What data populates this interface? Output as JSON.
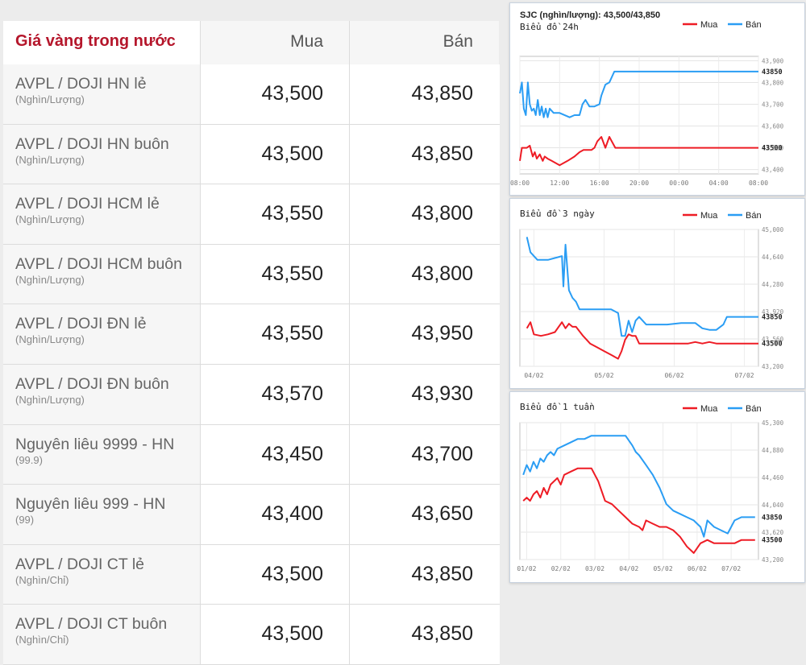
{
  "table": {
    "title": "Giá vàng trong nước",
    "col_buy": "Mua",
    "col_sell": "Bán",
    "rows": [
      {
        "name": "AVPL / DOJI HN lẻ",
        "unit": "(Nghìn/Lượng)",
        "buy": "43,500",
        "sell": "43,850"
      },
      {
        "name": "AVPL / DOJI HN buôn",
        "unit": "(Nghìn/Lượng)",
        "buy": "43,500",
        "sell": "43,850"
      },
      {
        "name": "AVPL / DOJI HCM lẻ",
        "unit": "(Nghìn/Lượng)",
        "buy": "43,550",
        "sell": "43,800"
      },
      {
        "name": "AVPL / DOJI HCM buôn",
        "unit": "(Nghìn/Lượng)",
        "buy": "43,550",
        "sell": "43,800"
      },
      {
        "name": "AVPL / DOJI ĐN lẻ",
        "unit": "(Nghìn/Lượng)",
        "buy": "43,550",
        "sell": "43,950"
      },
      {
        "name": "AVPL / DOJI ĐN buôn",
        "unit": "(Nghìn/Lượng)",
        "buy": "43,570",
        "sell": "43,930"
      },
      {
        "name": "Nguyên liêu 9999 - HN",
        "unit": "(99.9)",
        "buy": "43,450",
        "sell": "43,700"
      },
      {
        "name": "Nguyên liêu 999 - HN",
        "unit": "(99)",
        "buy": "43,400",
        "sell": "43,650"
      },
      {
        "name": "AVPL / DOJI CT lẻ",
        "unit": "(Nghìn/Chỉ)",
        "buy": "43,500",
        "sell": "43,850"
      },
      {
        "name": "AVPL / DOJI CT buôn",
        "unit": "(Nghìn/Chỉ)",
        "buy": "43,500",
        "sell": "43,850"
      }
    ]
  },
  "chart_data": [
    {
      "type": "line",
      "header": "SJC (nghìn/lượng): 43,500/43,850",
      "title": "Biểu đồ 24h",
      "legend": [
        "Mua",
        "Bán"
      ],
      "legend_position": "top-right",
      "colors": {
        "Mua": "#ee1c25",
        "Bán": "#2a9df4"
      },
      "x_ticks": [
        "08:00",
        "12:00",
        "16:00",
        "20:00",
        "00:00",
        "04:00",
        "08:00"
      ],
      "y_ticks": [
        43900,
        43800,
        43700,
        43600,
        43500,
        43400
      ],
      "ylim": [
        43380,
        43920
      ],
      "y_tick_labels": [
        "43,900",
        "43,800",
        "43,700",
        "43,600",
        "43,500",
        "43,400"
      ],
      "last_labels": {
        "Mua": "43500",
        "Bán": "43850"
      },
      "grid": true,
      "series": [
        {
          "name": "Mua",
          "x": [
            8.0,
            8.2,
            8.4,
            8.7,
            9.0,
            9.3,
            9.5,
            9.7,
            10.0,
            10.3,
            10.5,
            10.8,
            11.2,
            11.6,
            12.0,
            12.8,
            13.5,
            14.0,
            14.4,
            14.8,
            15.2,
            15.5,
            15.8,
            16.2,
            16.6,
            17.0,
            17.6,
            18.0,
            20,
            22,
            24,
            26,
            28,
            30,
            32
          ],
          "y": [
            43440,
            43500,
            43500,
            43500,
            43510,
            43460,
            43480,
            43450,
            43470,
            43440,
            43460,
            43450,
            43440,
            43430,
            43420,
            43440,
            43460,
            43480,
            43490,
            43490,
            43490,
            43500,
            43530,
            43550,
            43500,
            43550,
            43500,
            43500,
            43500,
            43500,
            43500,
            43500,
            43500,
            43500,
            43500
          ]
        },
        {
          "name": "Bán",
          "x": [
            8.0,
            8.2,
            8.4,
            8.6,
            8.8,
            9.0,
            9.2,
            9.4,
            9.6,
            9.8,
            10.0,
            10.2,
            10.4,
            10.6,
            10.8,
            11.0,
            11.4,
            12.0,
            13.0,
            13.5,
            14.0,
            14.3,
            14.6,
            15.0,
            15.5,
            16.0,
            16.2,
            16.6,
            17.0,
            17.5,
            18.0,
            20,
            22,
            24,
            26,
            28,
            30,
            32
          ],
          "y": [
            43750,
            43800,
            43680,
            43650,
            43800,
            43700,
            43670,
            43680,
            43650,
            43720,
            43650,
            43690,
            43640,
            43680,
            43640,
            43680,
            43660,
            43660,
            43640,
            43650,
            43650,
            43700,
            43720,
            43690,
            43690,
            43700,
            43740,
            43790,
            43800,
            43850,
            43850,
            43850,
            43850,
            43850,
            43850,
            43850,
            43850,
            43850
          ]
        }
      ]
    },
    {
      "type": "line",
      "title": "Biểu đồ 3 ngày",
      "legend": [
        "Mua",
        "Bán"
      ],
      "legend_position": "top-right",
      "colors": {
        "Mua": "#ee1c25",
        "Bán": "#2a9df4"
      },
      "x_ticks": [
        "04/02",
        "05/02",
        "06/02",
        "07/02"
      ],
      "y_ticks": [
        45000,
        44640,
        44280,
        43920,
        43560,
        43200
      ],
      "ylim": [
        43200,
        45000
      ],
      "y_tick_labels": [
        "45,000",
        "44,640",
        "44,280",
        "43,920",
        "43,560",
        "43,200"
      ],
      "last_labels": {
        "Mua": "43500",
        "Bán": "43850"
      },
      "grid": true,
      "series": [
        {
          "name": "Mua",
          "x": [
            0.0,
            0.05,
            0.1,
            0.2,
            0.3,
            0.4,
            0.5,
            0.55,
            0.6,
            0.65,
            0.7,
            0.8,
            0.9,
            1.0,
            1.1,
            1.2,
            1.3,
            1.35,
            1.4,
            1.45,
            1.5,
            1.55,
            1.6,
            1.7,
            1.8,
            1.9,
            2.0,
            2.1,
            2.2,
            2.3,
            2.4,
            2.5,
            2.6,
            2.7,
            2.8,
            2.9,
            3.0,
            3.1,
            3.2,
            3.3
          ],
          "y": [
            43700,
            43780,
            43620,
            43600,
            43620,
            43650,
            43780,
            43700,
            43760,
            43720,
            43720,
            43600,
            43500,
            43450,
            43400,
            43350,
            43300,
            43400,
            43550,
            43620,
            43600,
            43600,
            43500,
            43500,
            43500,
            43500,
            43500,
            43500,
            43500,
            43500,
            43520,
            43500,
            43520,
            43500,
            43500,
            43500,
            43500,
            43500,
            43500,
            43500
          ]
        },
        {
          "name": "Bán",
          "x": [
            0.0,
            0.05,
            0.15,
            0.3,
            0.5,
            0.52,
            0.55,
            0.6,
            0.65,
            0.7,
            0.75,
            0.8,
            0.9,
            1.0,
            1.1,
            1.2,
            1.3,
            1.35,
            1.4,
            1.45,
            1.5,
            1.55,
            1.6,
            1.7,
            1.8,
            2.0,
            2.2,
            2.4,
            2.5,
            2.6,
            2.7,
            2.8,
            2.85,
            2.9,
            3.0,
            3.1,
            3.2,
            3.3
          ],
          "y": [
            44900,
            44700,
            44600,
            44600,
            44650,
            44250,
            44800,
            44200,
            44100,
            44050,
            43950,
            43950,
            43950,
            43950,
            43950,
            43950,
            43900,
            43600,
            43600,
            43800,
            43650,
            43800,
            43850,
            43750,
            43750,
            43750,
            43770,
            43770,
            43700,
            43680,
            43680,
            43750,
            43850,
            43850,
            43850,
            43850,
            43850,
            43850
          ]
        }
      ]
    },
    {
      "type": "line",
      "title": "Biểu đồ 1 tuần",
      "legend": [
        "Mua",
        "Bán"
      ],
      "legend_position": "top-right",
      "colors": {
        "Mua": "#ee1c25",
        "Bán": "#2a9df4"
      },
      "x_ticks": [
        "01/02",
        "02/02",
        "03/02",
        "04/02",
        "05/02",
        "06/02",
        "07/02"
      ],
      "y_ticks": [
        45300,
        44880,
        44460,
        44040,
        43620,
        43200
      ],
      "ylim": [
        43200,
        45300
      ],
      "y_tick_labels": [
        "45,300",
        "44,880",
        "44,460",
        "44,040",
        "43,620",
        "43,200"
      ],
      "last_labels": {
        "Mua": "43500",
        "Bán": "43850"
      },
      "grid": true,
      "series": [
        {
          "name": "Mua",
          "x": [
            0.0,
            0.1,
            0.2,
            0.3,
            0.4,
            0.5,
            0.6,
            0.7,
            0.8,
            0.9,
            1.0,
            1.1,
            1.2,
            1.4,
            1.6,
            1.8,
            2.0,
            2.2,
            2.3,
            2.4,
            2.6,
            2.8,
            3.0,
            3.2,
            3.4,
            3.5,
            3.6,
            3.8,
            4.0,
            4.2,
            4.4,
            4.6,
            4.8,
            5.0,
            5.2,
            5.4,
            5.6,
            5.8,
            6.0,
            6.2,
            6.4,
            6.6,
            6.8
          ],
          "y": [
            44100,
            44150,
            44100,
            44200,
            44250,
            44150,
            44300,
            44200,
            44350,
            44400,
            44450,
            44350,
            44500,
            44550,
            44600,
            44600,
            44600,
            44400,
            44250,
            44100,
            44050,
            43950,
            43850,
            43750,
            43700,
            43650,
            43800,
            43750,
            43700,
            43700,
            43650,
            43550,
            43400,
            43300,
            43450,
            43500,
            43450,
            43450,
            43450,
            43450,
            43500,
            43500,
            43500
          ]
        },
        {
          "name": "Bán",
          "x": [
            0.0,
            0.1,
            0.2,
            0.3,
            0.4,
            0.5,
            0.6,
            0.7,
            0.8,
            0.9,
            1.0,
            1.2,
            1.4,
            1.6,
            1.8,
            2.0,
            2.2,
            2.4,
            2.6,
            2.8,
            3.0,
            3.2,
            3.3,
            3.4,
            3.6,
            3.8,
            4.0,
            4.2,
            4.4,
            4.6,
            4.8,
            5.0,
            5.2,
            5.3,
            5.4,
            5.6,
            5.8,
            6.0,
            6.2,
            6.4,
            6.6,
            6.8
          ],
          "y": [
            44500,
            44650,
            44550,
            44700,
            44600,
            44750,
            44700,
            44800,
            44850,
            44800,
            44900,
            44950,
            45000,
            45050,
            45050,
            45100,
            45100,
            45100,
            45100,
            45100,
            45100,
            44950,
            44850,
            44800,
            44650,
            44500,
            44300,
            44050,
            43950,
            43900,
            43850,
            43800,
            43700,
            43550,
            43800,
            43700,
            43650,
            43600,
            43800,
            43850,
            43850,
            43850
          ]
        }
      ]
    }
  ]
}
